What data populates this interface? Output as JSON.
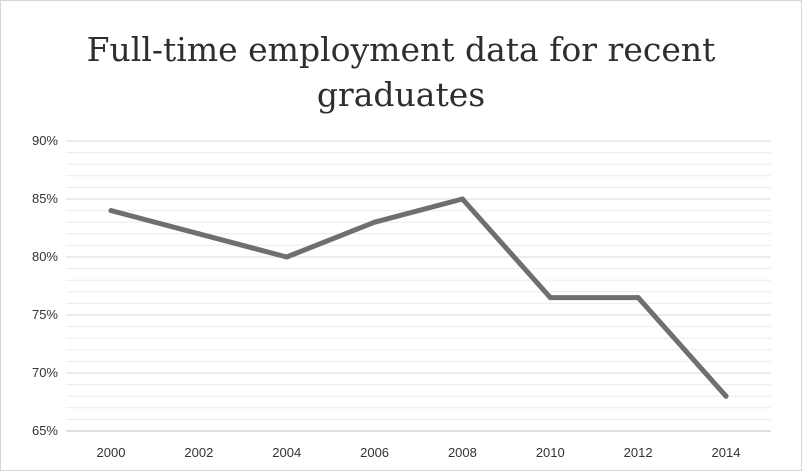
{
  "chart_data": {
    "type": "line",
    "title": "Full-time employment data for recent graduates",
    "xlabel": "",
    "ylabel": "",
    "x": [
      2000,
      2002,
      2004,
      2006,
      2008,
      2010,
      2012,
      2014
    ],
    "x_tick_labels": [
      "2000",
      "2002",
      "2004",
      "2006",
      "2008",
      "2010",
      "2012",
      "2014"
    ],
    "y_tick_labels": [
      "90%",
      "85%",
      "80%",
      "75%",
      "70%",
      "65%"
    ],
    "y_ticks": [
      90,
      85,
      80,
      75,
      70,
      65
    ],
    "ylim": [
      65,
      90
    ],
    "series": [
      {
        "values": [
          84,
          82,
          80,
          83,
          85,
          76.5,
          76.5,
          68
        ],
        "color": "#6f6f6f"
      }
    ],
    "grid": true,
    "minor_grid": true,
    "legend": "none"
  }
}
